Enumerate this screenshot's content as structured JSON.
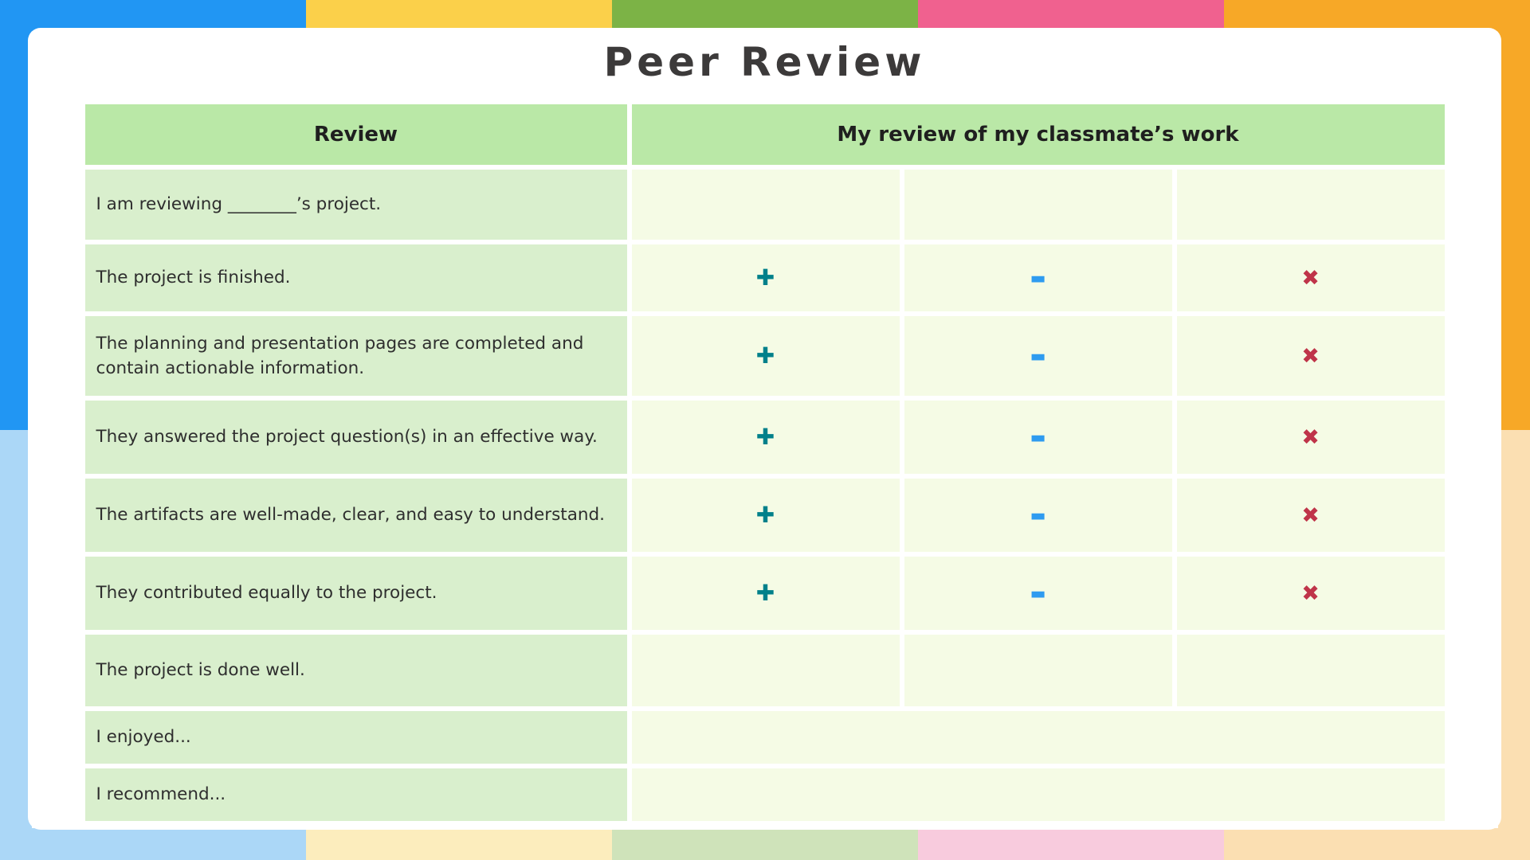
{
  "page": {
    "title": "Peer Review"
  },
  "frame": {
    "top_colors": [
      "#2196f3",
      "#fbd04a",
      "#7cb346",
      "#f0618f",
      "#f7a827"
    ],
    "bottom_colors": [
      "#abd7f7",
      "#fcedbd",
      "#cfe3ba",
      "#f8cbdd",
      "#fbdfb2"
    ],
    "left_colors": [
      "#2196f3",
      "#abd7f7"
    ],
    "right_colors": [
      "#f7a827",
      "#fbdfb2"
    ]
  },
  "table": {
    "header": {
      "review_label": "Review",
      "my_review_label": "My review of my classmate’s work"
    },
    "symbols": {
      "plus": "✚",
      "minus": "▬",
      "cross": "✖"
    },
    "symbol_colors": {
      "plus": "#00808a",
      "minus": "#2e9bf0",
      "cross": "#bf3449"
    },
    "rows": [
      {
        "label": "I am reviewing ________’s project.",
        "cells": "empty-three"
      },
      {
        "label": "The project is finished.",
        "cells": "symbols"
      },
      {
        "label": "The planning and presentation pages are completed and contain actionable information.",
        "cells": "symbols"
      },
      {
        "label": "They answered the project question(s) in an effective way.",
        "cells": "symbols"
      },
      {
        "label": "The artifacts are well-made, clear, and easy to understand.",
        "cells": "symbols"
      },
      {
        "label": "They contributed equally to the project.",
        "cells": "symbols"
      },
      {
        "label": "The project is done well.",
        "cells": "empty-three"
      },
      {
        "label": "I enjoyed...",
        "cells": "merged"
      },
      {
        "label": "I recommend...",
        "cells": "merged"
      }
    ]
  }
}
